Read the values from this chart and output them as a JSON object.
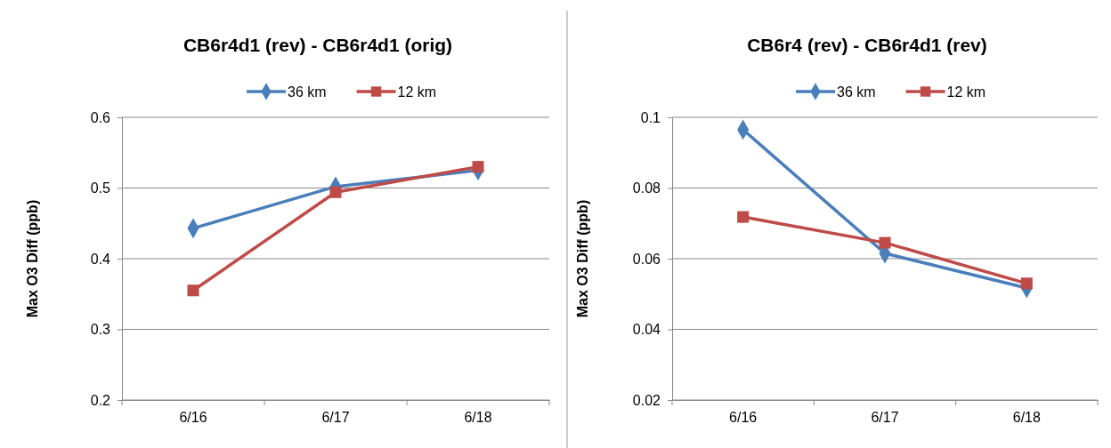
{
  "chart_data": [
    {
      "type": "line",
      "title": "CB6r4d1 (rev) - CB6r4d1 (orig)",
      "ylabel": "Max O3 Diff (ppb)",
      "categories": [
        "6/16",
        "6/17",
        "6/18"
      ],
      "series": [
        {
          "name": "36 km",
          "color": "#4a7ebb",
          "marker": "diamond",
          "values": [
            0.443,
            0.502,
            0.525
          ]
        },
        {
          "name": "12 km",
          "color": "#be4b48",
          "marker": "square",
          "values": [
            0.355,
            0.494,
            0.53
          ]
        }
      ],
      "ylim": [
        0.2,
        0.6
      ],
      "yticks": [
        0.2,
        0.3,
        0.4,
        0.5,
        0.6
      ],
      "grid": "y",
      "legend": "top"
    },
    {
      "type": "line",
      "title": "CB6r4 (rev) - CB6r4d1 (rev)",
      "ylabel": "Max O3 Diff (ppb)",
      "categories": [
        "6/16",
        "6/17",
        "6/18"
      ],
      "series": [
        {
          "name": "36 km",
          "color": "#4a7ebb",
          "marker": "diamond",
          "values": [
            0.0965,
            0.0615,
            0.0517
          ]
        },
        {
          "name": "12 km",
          "color": "#be4b48",
          "marker": "square",
          "values": [
            0.0718,
            0.0645,
            0.053
          ]
        }
      ],
      "ylim": [
        0.02,
        0.1
      ],
      "yticks": [
        0.02,
        0.04,
        0.06,
        0.08,
        0.1
      ],
      "grid": "y",
      "legend": "top"
    }
  ]
}
